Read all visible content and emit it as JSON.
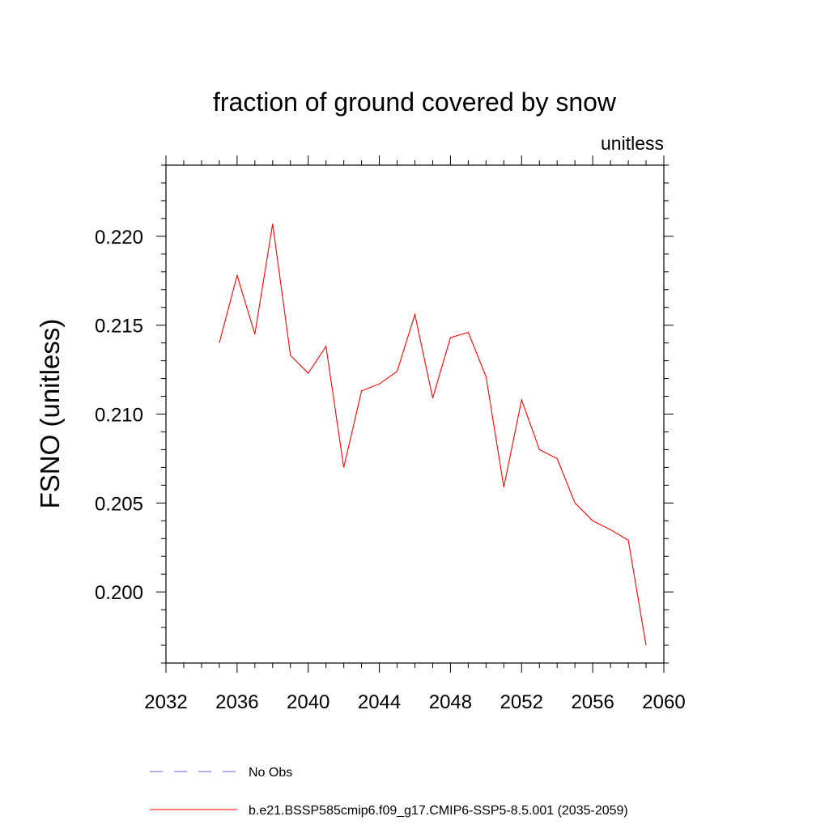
{
  "chart_data": {
    "type": "line",
    "title": "fraction of ground covered by snow",
    "subtitle": "unitless",
    "ylabel": "FSNO  (unitless)",
    "xlabel": "",
    "xlim": [
      2032,
      2060
    ],
    "ylim": [
      0.196,
      0.224
    ],
    "xticks": [
      2032,
      2036,
      2040,
      2044,
      2048,
      2052,
      2056,
      2060
    ],
    "xtick_labels": [
      "2032",
      "2036",
      "2040",
      "2044",
      "2048",
      "2052",
      "2056",
      "2060"
    ],
    "yticks": [
      0.2,
      0.205,
      0.21,
      0.215,
      0.22
    ],
    "ytick_labels": [
      "0.200",
      "0.205",
      "0.210",
      "0.215",
      "0.220"
    ],
    "grid": false,
    "legend_position": "bottom",
    "x": [
      2035,
      2036,
      2037,
      2038,
      2039,
      2040,
      2041,
      2042,
      2043,
      2044,
      2045,
      2046,
      2047,
      2048,
      2049,
      2050,
      2051,
      2052,
      2053,
      2054,
      2055,
      2056,
      2057,
      2058,
      2059
    ],
    "series": [
      {
        "name": "b.e21.BSSP585cmip6.f09_g17.CMIP6-SSP5-8.5.001 (2035-2059)",
        "color": "#ff0000",
        "style": "solid",
        "values": [
          0.214,
          0.2178,
          0.2145,
          0.2207,
          0.2133,
          0.2123,
          0.2138,
          0.207,
          0.2113,
          0.2117,
          0.2124,
          0.2156,
          0.2109,
          0.2143,
          0.2146,
          0.2121,
          0.2059,
          0.2108,
          0.208,
          0.2075,
          0.205,
          0.204,
          0.2035,
          0.2029,
          0.197
        ]
      }
    ],
    "legend": [
      {
        "label": "No Obs",
        "color": "#6a5acd",
        "style": "dashed"
      },
      {
        "label": "b.e21.BSSP585cmip6.f09_g17.CMIP6-SSP5-8.5.001 (2035-2059)",
        "color": "#ff0000",
        "style": "solid"
      }
    ]
  }
}
